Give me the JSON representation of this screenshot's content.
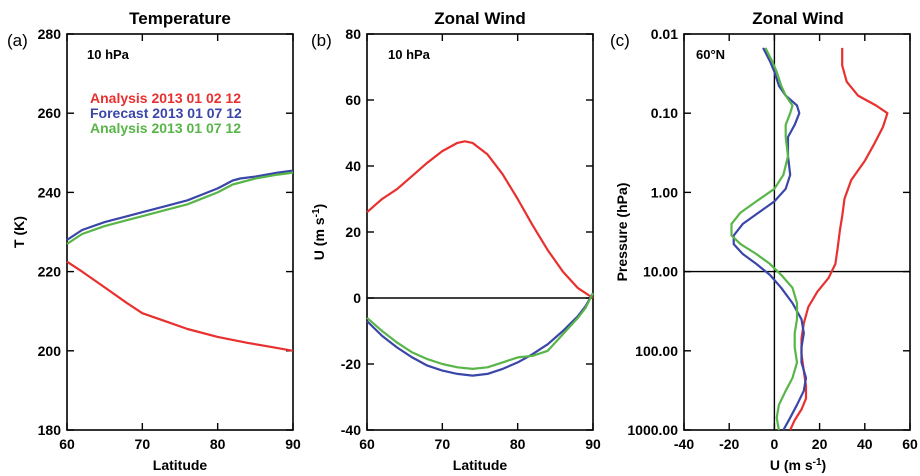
{
  "chart_data": [
    {
      "type": "line",
      "panel_label": "(a)",
      "title": "Temperature",
      "annotation": "10 hPa",
      "xlabel": "Latitude",
      "ylabel": "T (K)",
      "xlim": [
        60,
        90
      ],
      "ylim": [
        180,
        280
      ],
      "xticks": [
        "60",
        "70",
        "80",
        "90"
      ],
      "yticks": [
        "180",
        "200",
        "220",
        "240",
        "260",
        "280"
      ],
      "legend_position": "upper-left",
      "series": [
        {
          "name": "Analysis 2013 01 02 12",
          "color": "#e8302f",
          "x": [
            60,
            62,
            65,
            68,
            70,
            73,
            76,
            80,
            84,
            87,
            90
          ],
          "y": [
            222.5,
            220,
            216,
            212,
            209.5,
            207.5,
            205.5,
            203.5,
            202,
            201,
            200
          ]
        },
        {
          "name": "Forecast 2013 01 07 12",
          "color": "#3a46a8",
          "x": [
            60,
            62,
            65,
            68,
            70,
            73,
            76,
            78,
            80,
            81,
            82,
            83,
            85,
            88,
            90
          ],
          "y": [
            228,
            230.5,
            232.5,
            234,
            235,
            236.5,
            238,
            239.5,
            241,
            242,
            243,
            243.5,
            244,
            245,
            245.5
          ]
        },
        {
          "name": "Analysis 2013 01 07 12",
          "color": "#58b548",
          "x": [
            60,
            62,
            65,
            68,
            70,
            73,
            76,
            78,
            80,
            81,
            82,
            83,
            85,
            88,
            90
          ],
          "y": [
            227,
            229.5,
            231.5,
            233,
            234,
            235.5,
            237,
            238.5,
            240,
            241,
            242,
            242.5,
            243.5,
            244.5,
            245
          ]
        }
      ]
    },
    {
      "type": "line",
      "panel_label": "(b)",
      "title": "Zonal Wind",
      "annotation": "10 hPa",
      "xlabel": "Latitude",
      "ylabel": "U (m s-1)",
      "xlim": [
        60,
        90
      ],
      "ylim": [
        -40,
        80
      ],
      "xticks": [
        "60",
        "70",
        "80",
        "90"
      ],
      "yticks": [
        "-40",
        "-20",
        "0",
        "20",
        "40",
        "60",
        "80"
      ],
      "zero_line": 0,
      "series": [
        {
          "name": "Analysis 2013 01 02 12",
          "color": "#e8302f",
          "x": [
            60,
            62,
            64,
            66,
            68,
            70,
            72,
            73,
            74,
            76,
            78,
            80,
            82,
            84,
            86,
            88,
            90
          ],
          "y": [
            26,
            30,
            33,
            37,
            41,
            44.5,
            47,
            47.5,
            47,
            43.5,
            37.5,
            30,
            22,
            14.5,
            8,
            3,
            0
          ]
        },
        {
          "name": "Forecast 2013 01 07 12",
          "color": "#3a46a8",
          "x": [
            60,
            62,
            64,
            66,
            68,
            70,
            72,
            74,
            76,
            78,
            80,
            82,
            84,
            86,
            88,
            89,
            90
          ],
          "y": [
            -7,
            -11.5,
            -15,
            -18,
            -20.5,
            -22,
            -23,
            -23.5,
            -23,
            -21.5,
            -19.5,
            -17,
            -14,
            -10,
            -5.5,
            -2.5,
            1.5
          ]
        },
        {
          "name": "Analysis 2013 01 07 12",
          "color": "#58b548",
          "x": [
            60,
            62,
            64,
            66,
            68,
            70,
            72,
            74,
            76,
            78,
            80,
            82,
            84,
            86,
            88,
            89,
            90
          ],
          "y": [
            -6,
            -10,
            -13.5,
            -16.5,
            -18.5,
            -20,
            -21,
            -21.5,
            -21,
            -19.5,
            -18,
            -17.5,
            -16,
            -11,
            -6,
            -3,
            1.5
          ]
        }
      ]
    },
    {
      "type": "line",
      "panel_label": "(c)",
      "title": "Zonal Wind",
      "annotation": "60°N",
      "xlabel": "U (m s-1)",
      "ylabel": "Pressure (hPa)",
      "xlim": [
        -40,
        60
      ],
      "ylim": [
        1000,
        0.01
      ],
      "yscale": "log",
      "xticks": [
        "-40",
        "-20",
        "0",
        "20",
        "40",
        "60"
      ],
      "yticks": [
        "0.01",
        "0.10",
        "1.00",
        "10.00",
        "100.00",
        "1000.00"
      ],
      "hline": 10,
      "vline": 0,
      "series": [
        {
          "name": "Analysis 2013 01 02 12",
          "color": "#e8302f",
          "u": [
            30,
            30,
            32,
            37,
            45,
            50,
            48,
            44,
            40,
            34,
            31,
            30,
            29,
            28,
            27,
            24,
            19,
            15,
            13,
            12,
            12,
            13,
            14,
            14,
            12,
            9,
            7
          ],
          "p": [
            0.015,
            0.025,
            0.04,
            0.06,
            0.08,
            0.1,
            0.15,
            0.25,
            0.4,
            0.7,
            1.2,
            2,
            3,
            5,
            8,
            12,
            18,
            28,
            45,
            70,
            110,
            180,
            280,
            400,
            550,
            750,
            1000
          ]
        },
        {
          "name": "Forecast 2013 01 07 12",
          "color": "#3a46a8",
          "u": [
            -5,
            -2,
            0,
            2,
            5,
            10,
            11,
            9,
            6,
            6,
            7,
            5,
            0,
            -7,
            -14,
            -18,
            -18,
            -14,
            -8,
            -2,
            3,
            8,
            12,
            13,
            12,
            12,
            14,
            13,
            10,
            7,
            4
          ],
          "p": [
            0.015,
            0.022,
            0.03,
            0.045,
            0.06,
            0.08,
            0.1,
            0.14,
            0.2,
            0.35,
            0.6,
            0.9,
            1.3,
            1.8,
            2.5,
            3.5,
            4.5,
            6,
            8,
            11,
            16,
            25,
            40,
            60,
            90,
            140,
            220,
            320,
            480,
            700,
            1000
          ]
        },
        {
          "name": "Analysis 2013 01 07 12",
          "color": "#58b548",
          "u": [
            -4,
            -1,
            1,
            3,
            5,
            8,
            7,
            5,
            5,
            6,
            4,
            0,
            -8,
            -15,
            -19,
            -19,
            -15,
            -8,
            -2,
            3,
            8,
            10,
            10,
            9,
            9,
            10,
            8,
            5,
            2,
            1,
            2
          ],
          "p": [
            0.015,
            0.022,
            0.03,
            0.045,
            0.06,
            0.08,
            0.1,
            0.14,
            0.2,
            0.35,
            0.6,
            0.9,
            1.3,
            1.8,
            2.5,
            3.5,
            4.5,
            6,
            8,
            11,
            16,
            25,
            40,
            60,
            90,
            140,
            220,
            320,
            480,
            700,
            1000
          ]
        }
      ]
    }
  ]
}
